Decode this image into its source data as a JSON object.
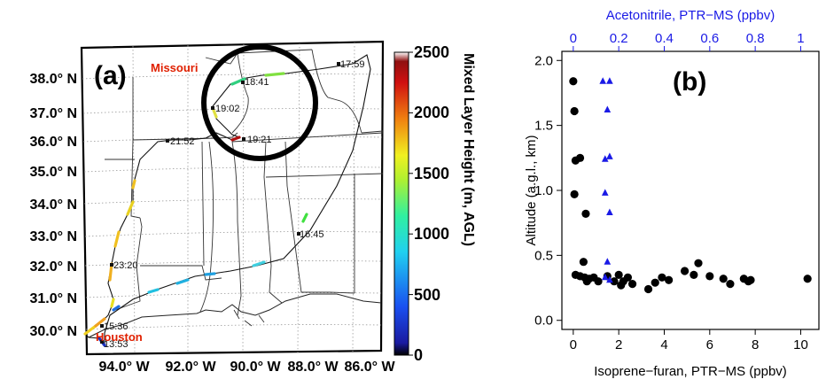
{
  "colors": {
    "track": "#111111",
    "circle": "#000000",
    "acetonitrile": "#1a1ae6",
    "isoprene": "#000000",
    "state_label": "#e02000"
  },
  "map": {
    "panel_label": "(a)",
    "lat_labels": [
      "38.0° N",
      "37.0° N",
      "36.0° N",
      "35.0° N",
      "34.0° N",
      "33.0° N",
      "32.0° N",
      "31.0° N",
      "30.0° N"
    ],
    "lon_labels": [
      "94.0° W",
      "92.0° W",
      "90.0° W",
      "88.0° W",
      "86.0° W"
    ],
    "place_labels": [
      "Missouri",
      "Houston"
    ],
    "time_labels": [
      "17:59",
      "18:41",
      "19:02",
      "19:21",
      "21:52",
      "16:45",
      "23:20",
      "15:36",
      "13:53"
    ]
  },
  "colorbar": {
    "title": "Mixed Layer Height (m, AGL)",
    "ticks": [
      "2500",
      "2000",
      "1500",
      "1000",
      "500",
      "0"
    ],
    "range": [
      0,
      2500
    ]
  },
  "chart_data": {
    "type": "scatter",
    "panel_label": "(b)",
    "xlabel": "Isoprene−furan, PTR−MS (ppbv)",
    "x2label": "Acetonitrile, PTR−MS (ppbv)",
    "ylabel": "Altitude (a.g.l., km)",
    "xlim": [
      -0.5,
      10.8
    ],
    "x2lim": [
      -0.05,
      1.08
    ],
    "ylim": [
      -0.07,
      2.07
    ],
    "x_ticks": [
      0,
      2,
      4,
      6,
      8,
      10
    ],
    "x2_ticks": [
      0,
      0.2,
      0.4,
      0.6,
      0.8,
      1
    ],
    "y_ticks": [
      0.0,
      0.5,
      1.0,
      1.5,
      2.0
    ],
    "x_tick_labels": [
      "0",
      "2",
      "4",
      "6",
      "8",
      "10"
    ],
    "x2_tick_labels": [
      "0",
      "0.2",
      "0.4",
      "0.6",
      "0.8",
      "1"
    ],
    "y_tick_labels": [
      "0.0",
      "0.5",
      "1.0",
      "1.5",
      "2.0"
    ],
    "grid": false,
    "series": [
      {
        "values": [
          [
            0.0,
            1.84
          ],
          [
            0.05,
            1.61
          ],
          [
            0.3,
            1.25
          ],
          [
            0.1,
            1.23
          ],
          [
            0.05,
            0.97
          ],
          [
            0.55,
            0.82
          ],
          [
            0.45,
            0.45
          ],
          [
            0.1,
            0.35
          ],
          [
            0.3,
            0.34
          ],
          [
            0.5,
            0.33
          ],
          [
            0.7,
            0.32
          ],
          [
            0.9,
            0.33
          ],
          [
            1.1,
            0.3
          ],
          [
            1.5,
            0.34
          ],
          [
            1.8,
            0.3
          ],
          [
            2.0,
            0.35
          ],
          [
            2.2,
            0.3
          ],
          [
            2.4,
            0.33
          ],
          [
            2.6,
            0.28
          ],
          [
            2.1,
            0.27
          ],
          [
            3.3,
            0.24
          ],
          [
            3.6,
            0.29
          ],
          [
            3.9,
            0.33
          ],
          [
            4.2,
            0.31
          ],
          [
            4.9,
            0.38
          ],
          [
            5.3,
            0.35
          ],
          [
            5.5,
            0.44
          ],
          [
            6.0,
            0.34
          ],
          [
            6.6,
            0.32
          ],
          [
            6.9,
            0.28
          ],
          [
            7.5,
            0.32
          ],
          [
            7.7,
            0.3
          ],
          [
            7.8,
            0.31
          ],
          [
            10.3,
            0.32
          ],
          [
            0.6,
            0.3
          ]
        ]
      },
      {
        "axis": "top",
        "values": [
          [
            0.13,
            1.84
          ],
          [
            0.16,
            1.84
          ],
          [
            0.15,
            1.62
          ],
          [
            0.14,
            1.24
          ],
          [
            0.16,
            1.26
          ],
          [
            0.14,
            0.98
          ],
          [
            0.16,
            0.83
          ],
          [
            0.15,
            0.45
          ],
          [
            0.14,
            0.33
          ],
          [
            0.16,
            0.31
          ]
        ]
      }
    ]
  }
}
